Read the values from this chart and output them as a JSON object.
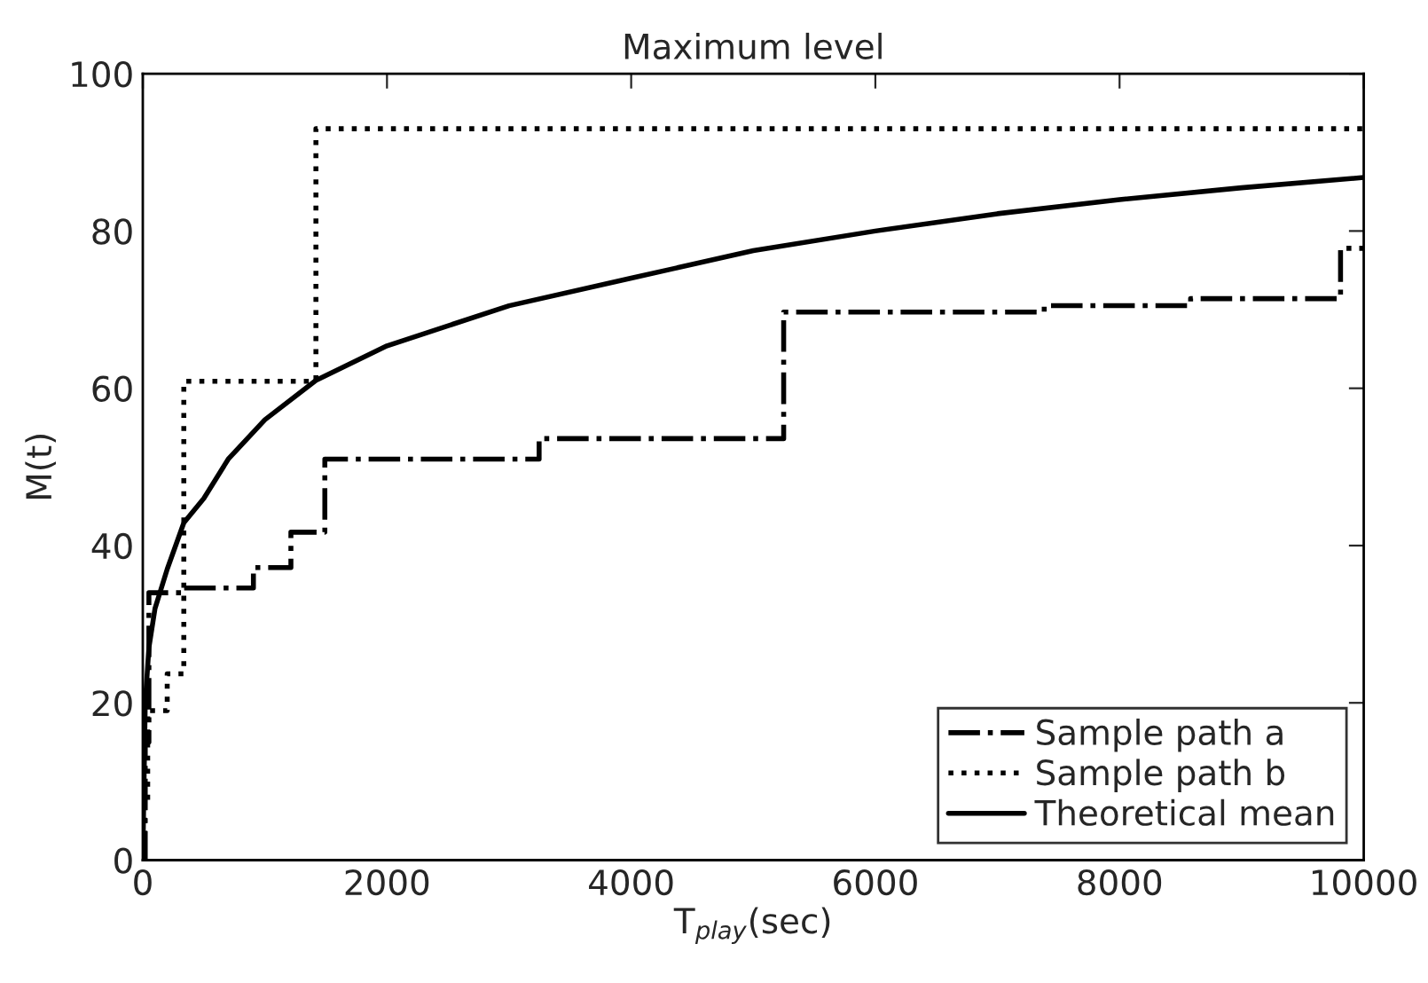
{
  "chart_data": {
    "type": "line",
    "title": "Maximum level",
    "xlabel": "T$_{play}$(sec)",
    "ylabel": "M(t)",
    "series": [
      {
        "name": "Sample path a",
        "type": "step",
        "color": "#000000",
        "line_style": "dashdot",
        "x": [
          0,
          20,
          50,
          320,
          906,
          1213,
          1491,
          3246,
          5249,
          7383,
          8582,
          9810,
          10000
        ],
        "values": [
          0,
          15,
          34,
          34.6,
          37.2,
          41.7,
          51,
          53.6,
          69.7,
          70.5,
          71.4,
          77.8,
          77.8
        ]
      },
      {
        "name": "Sample path b",
        "type": "step",
        "color": "#000000",
        "line_style": "dotted",
        "x": [
          0,
          15,
          40,
          200,
          336,
          1418,
          10000
        ],
        "values": [
          0,
          7,
          19,
          23.7,
          60.9,
          93,
          93
        ]
      },
      {
        "name": "Theoretical mean",
        "color": "#000000",
        "line_style": "solid",
        "x": [
          0,
          20,
          50,
          100,
          200,
          336,
          500,
          700,
          1000,
          1418,
          2000,
          3000,
          4000,
          5000,
          6000,
          7000,
          8000,
          9000,
          10000
        ],
        "values": [
          0,
          20,
          27,
          32,
          37,
          42.9,
          46,
          51,
          56,
          61,
          65.4,
          70.5,
          74,
          77.5,
          80,
          82.2,
          84,
          85.5,
          86.8
        ]
      }
    ],
    "xlim": [
      0,
      10000
    ],
    "xticks": [
      0,
      2000,
      4000,
      6000,
      8000,
      10000
    ],
    "ylim": [
      0,
      100
    ],
    "yticks": [
      0,
      20,
      40,
      60,
      80,
      100
    ],
    "legend": "bottom right"
  }
}
